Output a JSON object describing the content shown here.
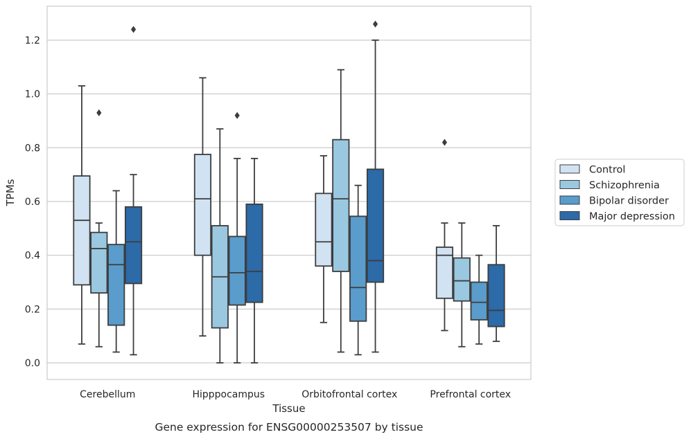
{
  "chart_data": {
    "type": "box",
    "xlabel": "Tissue",
    "ylabel": "TPMs",
    "caption": "Gene expression for ENSG00000253507 by tissue",
    "ylim": [
      -0.06,
      1.32
    ],
    "yticks": [
      "0.0",
      "0.2",
      "0.4",
      "0.6",
      "0.8",
      "1.0",
      "1.2"
    ],
    "grid": "horizontal",
    "legend_position": "right",
    "categories": [
      "Cerebellum",
      "Hipppocampus",
      "Orbitofrontal cortex",
      "Prefrontal cortex"
    ],
    "series": [
      {
        "name": "Control",
        "color": "#d1e2f2",
        "boxes": [
          {
            "whisker_low": 0.07,
            "q1": 0.29,
            "median": 0.53,
            "q3": 0.695,
            "whisker_high": 1.03,
            "outliers": []
          },
          {
            "whisker_low": 0.1,
            "q1": 0.4,
            "median": 0.61,
            "q3": 0.775,
            "whisker_high": 1.06,
            "outliers": []
          },
          {
            "whisker_low": 0.15,
            "q1": 0.36,
            "median": 0.45,
            "q3": 0.63,
            "whisker_high": 0.77,
            "outliers": []
          },
          {
            "whisker_low": 0.12,
            "q1": 0.24,
            "median": 0.4,
            "q3": 0.43,
            "whisker_high": 0.52,
            "outliers": [
              0.82
            ]
          }
        ]
      },
      {
        "name": "Schizophrenia",
        "color": "#9ac8e0",
        "boxes": [
          {
            "whisker_low": 0.06,
            "q1": 0.26,
            "median": 0.425,
            "q3": 0.485,
            "whisker_high": 0.52,
            "outliers": [
              0.93
            ]
          },
          {
            "whisker_low": 0.0,
            "q1": 0.13,
            "median": 0.32,
            "q3": 0.51,
            "whisker_high": 0.87,
            "outliers": []
          },
          {
            "whisker_low": 0.04,
            "q1": 0.34,
            "median": 0.61,
            "q3": 0.83,
            "whisker_high": 1.09,
            "outliers": []
          },
          {
            "whisker_low": 0.06,
            "q1": 0.23,
            "median": 0.305,
            "q3": 0.39,
            "whisker_high": 0.52,
            "outliers": []
          }
        ]
      },
      {
        "name": "Bipolar disorder",
        "color": "#5a9ccb",
        "boxes": [
          {
            "whisker_low": 0.04,
            "q1": 0.14,
            "median": 0.365,
            "q3": 0.44,
            "whisker_high": 0.64,
            "outliers": []
          },
          {
            "whisker_low": 0.0,
            "q1": 0.215,
            "median": 0.335,
            "q3": 0.47,
            "whisker_high": 0.76,
            "outliers": [
              0.92
            ]
          },
          {
            "whisker_low": 0.03,
            "q1": 0.155,
            "median": 0.28,
            "q3": 0.545,
            "whisker_high": 0.66,
            "outliers": []
          },
          {
            "whisker_low": 0.07,
            "q1": 0.16,
            "median": 0.225,
            "q3": 0.3,
            "whisker_high": 0.4,
            "outliers": []
          }
        ]
      },
      {
        "name": "Major depression",
        "color": "#2c6aa8",
        "boxes": [
          {
            "whisker_low": 0.03,
            "q1": 0.295,
            "median": 0.45,
            "q3": 0.58,
            "whisker_high": 0.7,
            "outliers": [
              1.24
            ]
          },
          {
            "whisker_low": 0.0,
            "q1": 0.225,
            "median": 0.34,
            "q3": 0.59,
            "whisker_high": 0.76,
            "outliers": []
          },
          {
            "whisker_low": 0.04,
            "q1": 0.3,
            "median": 0.38,
            "q3": 0.72,
            "whisker_high": 1.2,
            "outliers": [
              1.26
            ]
          },
          {
            "whisker_low": 0.08,
            "q1": 0.135,
            "median": 0.195,
            "q3": 0.365,
            "whisker_high": 0.51,
            "outliers": []
          }
        ]
      }
    ]
  }
}
